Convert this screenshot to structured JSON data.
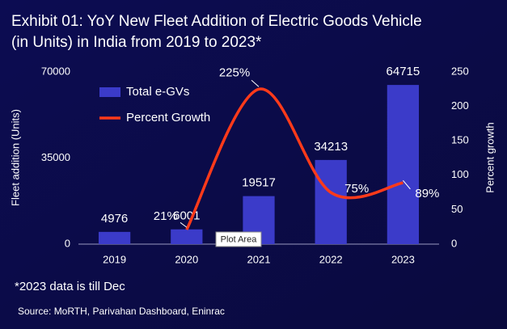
{
  "chart_data": {
    "type": "bar_line",
    "title": [
      "Exhibit 01: YoY New Fleet Addition of Electric Goods Vehicle",
      "(in Units) in India from 2019 to 2023*"
    ],
    "categories": [
      "2019",
      "2020",
      "2021",
      "2022",
      "2023"
    ],
    "series": [
      {
        "name": "Total e-GVs",
        "type": "bar",
        "color": "#3b3bc9",
        "values": [
          4976,
          6001,
          19517,
          34213,
          64715
        ]
      },
      {
        "name": "Percent Growth",
        "type": "line",
        "axis": "y2",
        "color": "#ff3a1a",
        "smooth": true,
        "values": [
          null,
          21,
          225,
          75,
          89
        ],
        "value_labels": [
          null,
          "21%",
          "225%",
          "75%",
          "89%"
        ]
      }
    ],
    "ylabel": "Fleet addition (Units)",
    "y2label": "Percent growth",
    "ylim": [
      0,
      70000
    ],
    "yticks": [
      0,
      35000,
      70000
    ],
    "y2lim": [
      0,
      250
    ],
    "y2ticks": [
      0,
      50,
      100,
      150,
      200,
      250
    ],
    "legend": "top-left",
    "tooltip": "Plot Area",
    "footnote": "*2023 data is till Dec",
    "source": "Source:  MoRTH, Parivahan Dashboard, Eninrac"
  }
}
